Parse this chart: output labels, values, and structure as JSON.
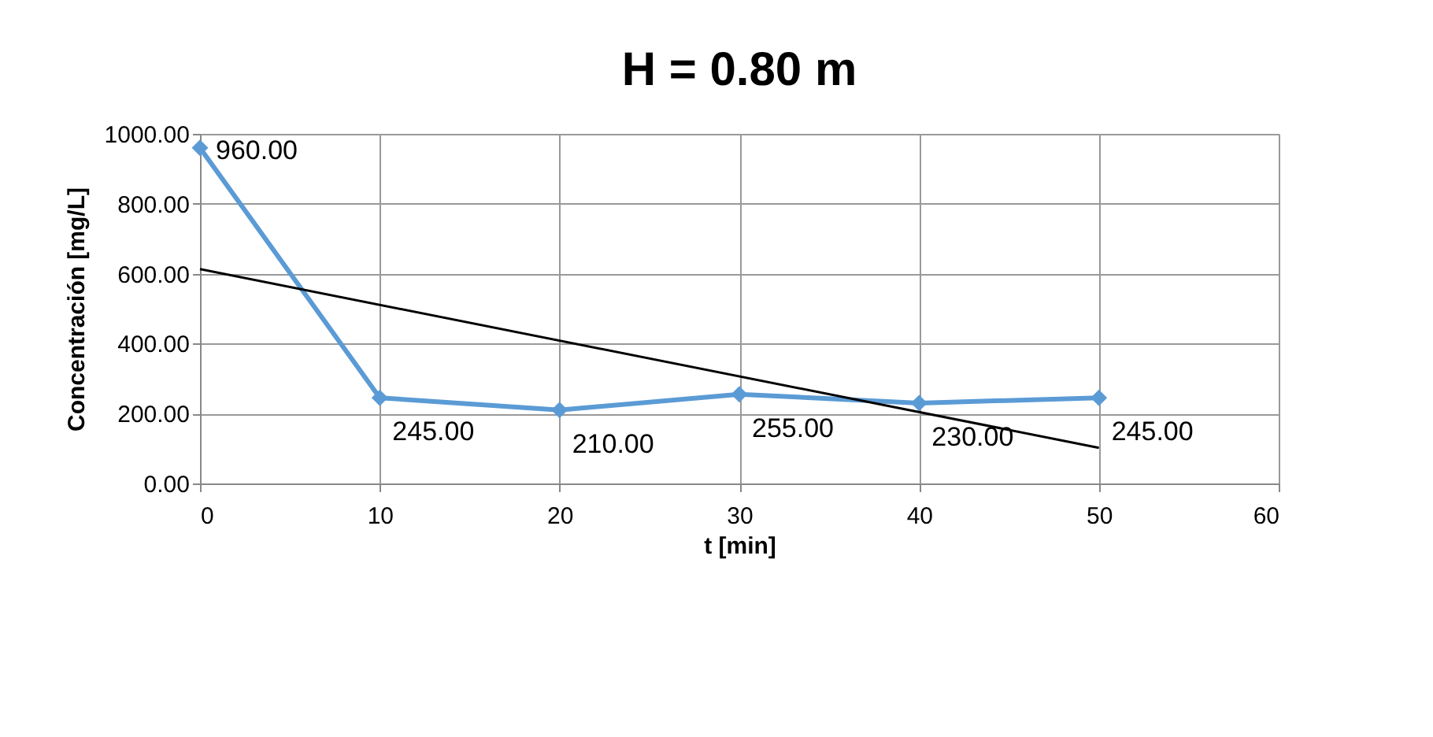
{
  "chart_data": {
    "type": "line",
    "title": "H = 0.80 m",
    "xlabel": "t [min]",
    "ylabel": "Concentración  [mg/L]",
    "x": [
      0,
      10,
      20,
      30,
      40,
      50
    ],
    "series": [
      {
        "color": "#5b9bd5",
        "values": [
          960,
          245,
          210,
          255,
          230,
          245
        ],
        "marker": "diamond",
        "value_labels": [
          "960.00",
          "245.00",
          "210.00",
          "255.00",
          "230.00",
          "245.00"
        ]
      },
      {
        "type": "line",
        "color": "#000000",
        "x": [
          0,
          50
        ],
        "values": [
          613,
          102
        ],
        "marker": "none"
      }
    ],
    "xlim": [
      0,
      60
    ],
    "xticks": [
      0,
      10,
      20,
      30,
      40,
      50,
      60
    ],
    "ylim": [
      0,
      1000
    ],
    "yticks": [
      {
        "value": 0,
        "label": "0.00"
      },
      {
        "value": 200,
        "label": "200.00"
      },
      {
        "value": 400,
        "label": "400.00"
      },
      {
        "value": 600,
        "label": "600.00"
      },
      {
        "value": 800,
        "label": "800.00"
      },
      {
        "value": 1000,
        "label": "1000.00"
      }
    ],
    "grid": true
  }
}
